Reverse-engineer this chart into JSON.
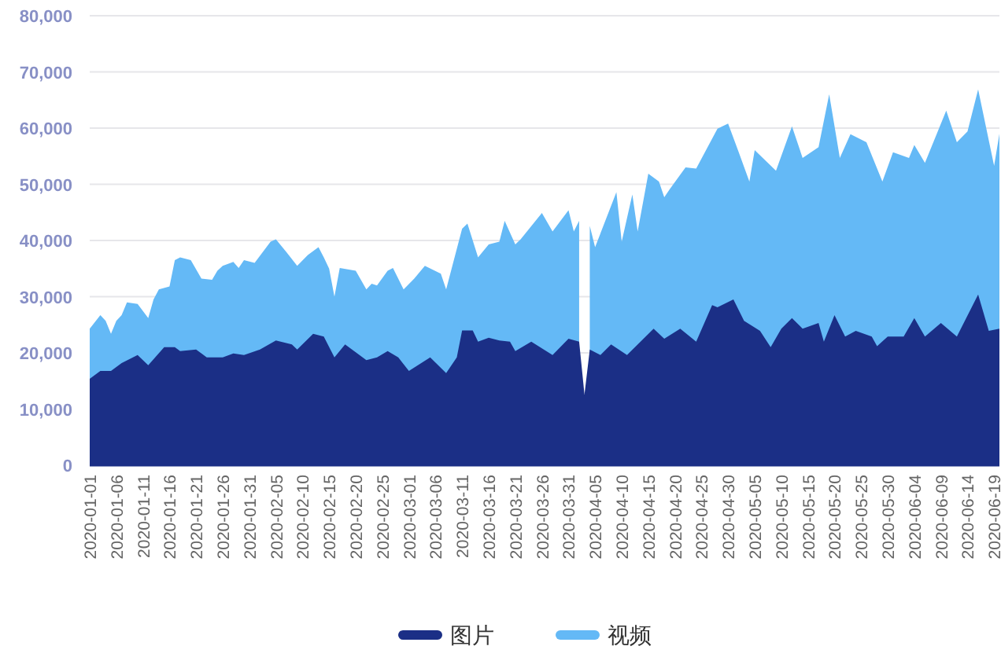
{
  "chart_data": {
    "type": "area",
    "xlim": [
      "2020-01-01",
      "2020-06-20"
    ],
    "xticks": [
      "2020-01-01",
      "2020-01-06",
      "2020-01-11",
      "2020-01-16",
      "2020-01-21",
      "2020-01-26",
      "2020-01-31",
      "2020-02-05",
      "2020-02-10",
      "2020-02-15",
      "2020-02-20",
      "2020-02-25",
      "2020-03-01",
      "2020-03-06",
      "2020-03-11",
      "2020-03-16",
      "2020-03-21",
      "2020-03-26",
      "2020-03-31",
      "2020-04-05",
      "2020-04-10",
      "2020-04-15",
      "2020-04-20",
      "2020-04-25",
      "2020-04-30",
      "2020-05-05",
      "2020-05-10",
      "2020-05-15",
      "2020-05-20",
      "2020-05-25",
      "2020-05-30",
      "2020-06-04",
      "2020-06-09",
      "2020-06-14",
      "2020-06-19"
    ],
    "ylim": [
      0,
      80000
    ],
    "yticks": [
      0,
      {
        "value": 10000,
        "label": "10,000"
      },
      {
        "value": 20000,
        "label": "20,000"
      },
      {
        "value": 30000,
        "label": "30,000"
      },
      {
        "value": 40000,
        "label": "40,000"
      },
      {
        "value": 50000,
        "label": "50,000"
      },
      {
        "value": 60000,
        "label": "60,000"
      },
      {
        "value": 70000,
        "label": "70,000"
      },
      {
        "value": 80000,
        "label": "80,000"
      }
    ],
    "grid": "y",
    "legend": "bottom",
    "series": [
      {
        "name": "图片",
        "color": "#1b2f86",
        "x": [
          "2020-01-01",
          "2020-01-03",
          "2020-01-05",
          "2020-01-07",
          "2020-01-10",
          "2020-01-12",
          "2020-01-15",
          "2020-01-17",
          "2020-01-18",
          "2020-01-21",
          "2020-01-23",
          "2020-01-26",
          "2020-01-28",
          "2020-01-30",
          "2020-02-02",
          "2020-02-05",
          "2020-02-08",
          "2020-02-09",
          "2020-02-12",
          "2020-02-14",
          "2020-02-16",
          "2020-02-18",
          "2020-02-20",
          "2020-02-22",
          "2020-02-24",
          "2020-02-26",
          "2020-02-28",
          "2020-03-01",
          "2020-03-05",
          "2020-03-08",
          "2020-03-10",
          "2020-03-11",
          "2020-03-13",
          "2020-03-14",
          "2020-03-16",
          "2020-03-18",
          "2020-03-20",
          "2020-03-21",
          "2020-03-24",
          "2020-03-28",
          "2020-03-31",
          "2020-04-02",
          "2020-04-03",
          "2020-04-04",
          "2020-04-06",
          "2020-04-08",
          "2020-04-11",
          "2020-04-16",
          "2020-04-18",
          "2020-04-21",
          "2020-04-24",
          "2020-04-27",
          "2020-04-28",
          "2020-05-01",
          "2020-05-03",
          "2020-05-06",
          "2020-05-08",
          "2020-05-10",
          "2020-05-12",
          "2020-05-14",
          "2020-05-17",
          "2020-05-18",
          "2020-05-20",
          "2020-05-22",
          "2020-05-24",
          "2020-05-27",
          "2020-05-28",
          "2020-05-30",
          "2020-06-02",
          "2020-06-04",
          "2020-06-06",
          "2020-06-09",
          "2020-06-12",
          "2020-06-16",
          "2020-06-18",
          "2020-06-20"
        ],
        "values": [
          15400,
          16800,
          16800,
          18200,
          19600,
          17800,
          21000,
          21000,
          20300,
          20600,
          19200,
          19200,
          19900,
          19600,
          20600,
          22200,
          21500,
          20600,
          23400,
          22900,
          19200,
          21500,
          20100,
          18700,
          19200,
          20300,
          19200,
          16800,
          19200,
          16400,
          19200,
          24000,
          24000,
          22000,
          22700,
          22200,
          22000,
          20300,
          22000,
          19600,
          22500,
          22000,
          12600,
          20600,
          19600,
          21500,
          19600,
          24300,
          22500,
          24300,
          22000,
          28500,
          28100,
          29500,
          25700,
          23900,
          21000,
          24300,
          26200,
          24300,
          25300,
          22000,
          26700,
          22900,
          23900,
          22900,
          21200,
          22900,
          22900,
          26200,
          22900,
          25300,
          22900,
          30400,
          23900,
          24300
        ]
      },
      {
        "name": "视频",
        "color": "#64b9f6",
        "x": [
          "2020-01-01",
          "2020-01-03",
          "2020-01-04",
          "2020-01-05",
          "2020-01-06",
          "2020-01-07",
          "2020-01-08",
          "2020-01-10",
          "2020-01-12",
          "2020-01-13",
          "2020-01-14",
          "2020-01-16",
          "2020-01-17",
          "2020-01-18",
          "2020-01-20",
          "2020-01-22",
          "2020-01-24",
          "2020-01-25",
          "2020-01-26",
          "2020-01-28",
          "2020-01-29",
          "2020-01-30",
          "2020-02-01",
          "2020-02-04",
          "2020-02-05",
          "2020-02-07",
          "2020-02-09",
          "2020-02-11",
          "2020-02-13",
          "2020-02-14",
          "2020-02-15",
          "2020-02-16",
          "2020-02-17",
          "2020-02-20",
          "2020-02-22",
          "2020-02-23",
          "2020-02-24",
          "2020-02-26",
          "2020-02-27",
          "2020-02-29",
          "2020-03-02",
          "2020-03-04",
          "2020-03-07",
          "2020-03-08",
          "2020-03-11",
          "2020-03-12",
          "2020-03-14",
          "2020-03-16",
          "2020-03-18",
          "2020-03-19",
          "2020-03-21",
          "2020-03-22",
          "2020-03-26",
          "2020-03-28",
          "2020-03-31",
          "2020-04-01",
          "2020-04-02",
          "2020-04-03",
          "2020-04-04",
          "2020-04-05",
          "2020-04-09",
          "2020-04-10",
          "2020-04-12",
          "2020-04-13",
          "2020-04-15",
          "2020-04-17",
          "2020-04-18",
          "2020-04-19",
          "2020-04-22",
          "2020-04-24",
          "2020-04-28",
          "2020-04-30",
          "2020-05-02",
          "2020-05-04",
          "2020-05-05",
          "2020-05-09",
          "2020-05-12",
          "2020-05-14",
          "2020-05-17",
          "2020-05-19",
          "2020-05-21",
          "2020-05-23",
          "2020-05-26",
          "2020-05-29",
          "2020-05-31",
          "2020-06-03",
          "2020-06-04",
          "2020-06-06",
          "2020-06-10",
          "2020-06-12",
          "2020-06-14",
          "2020-06-16",
          "2020-06-19",
          "2020-06-20"
        ],
        "values": [
          24300,
          26700,
          25700,
          23400,
          25700,
          26700,
          29000,
          28700,
          26200,
          29500,
          31300,
          31800,
          36500,
          37000,
          36500,
          33200,
          33000,
          34600,
          35500,
          36200,
          35100,
          36500,
          36000,
          39800,
          40200,
          37900,
          35500,
          37400,
          38800,
          37000,
          35000,
          30000,
          35100,
          34600,
          31300,
          32300,
          32000,
          34600,
          35100,
          31300,
          33200,
          35500,
          34100,
          31300,
          42100,
          43000,
          37000,
          39300,
          39800,
          43500,
          39300,
          40200,
          44900,
          41600,
          45400,
          41600,
          43500,
          null,
          42600,
          38800,
          48600,
          39800,
          48200,
          41600,
          51900,
          50500,
          47700,
          49100,
          53000,
          52800,
          59900,
          60800,
          55700,
          50500,
          56100,
          52400,
          60300,
          54700,
          56600,
          66000,
          54700,
          58900,
          57500,
          50500,
          55700,
          54700,
          57000,
          53800,
          63100,
          57500,
          59400,
          66900,
          53300,
          59000
        ]
      }
    ]
  }
}
